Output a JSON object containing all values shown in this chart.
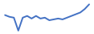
{
  "y": [
    0.1,
    0.0,
    -0.05,
    -0.8,
    -0.05,
    0.05,
    -0.1,
    0.05,
    -0.1,
    -0.05,
    -0.2,
    -0.15,
    -0.1,
    -0.15,
    -0.05,
    0.05,
    0.15,
    0.25,
    0.45,
    0.72
  ],
  "line_color": "#4472c4",
  "linewidth": 1.4,
  "background_color": "#ffffff",
  "ylim": [
    -0.95,
    0.95
  ]
}
